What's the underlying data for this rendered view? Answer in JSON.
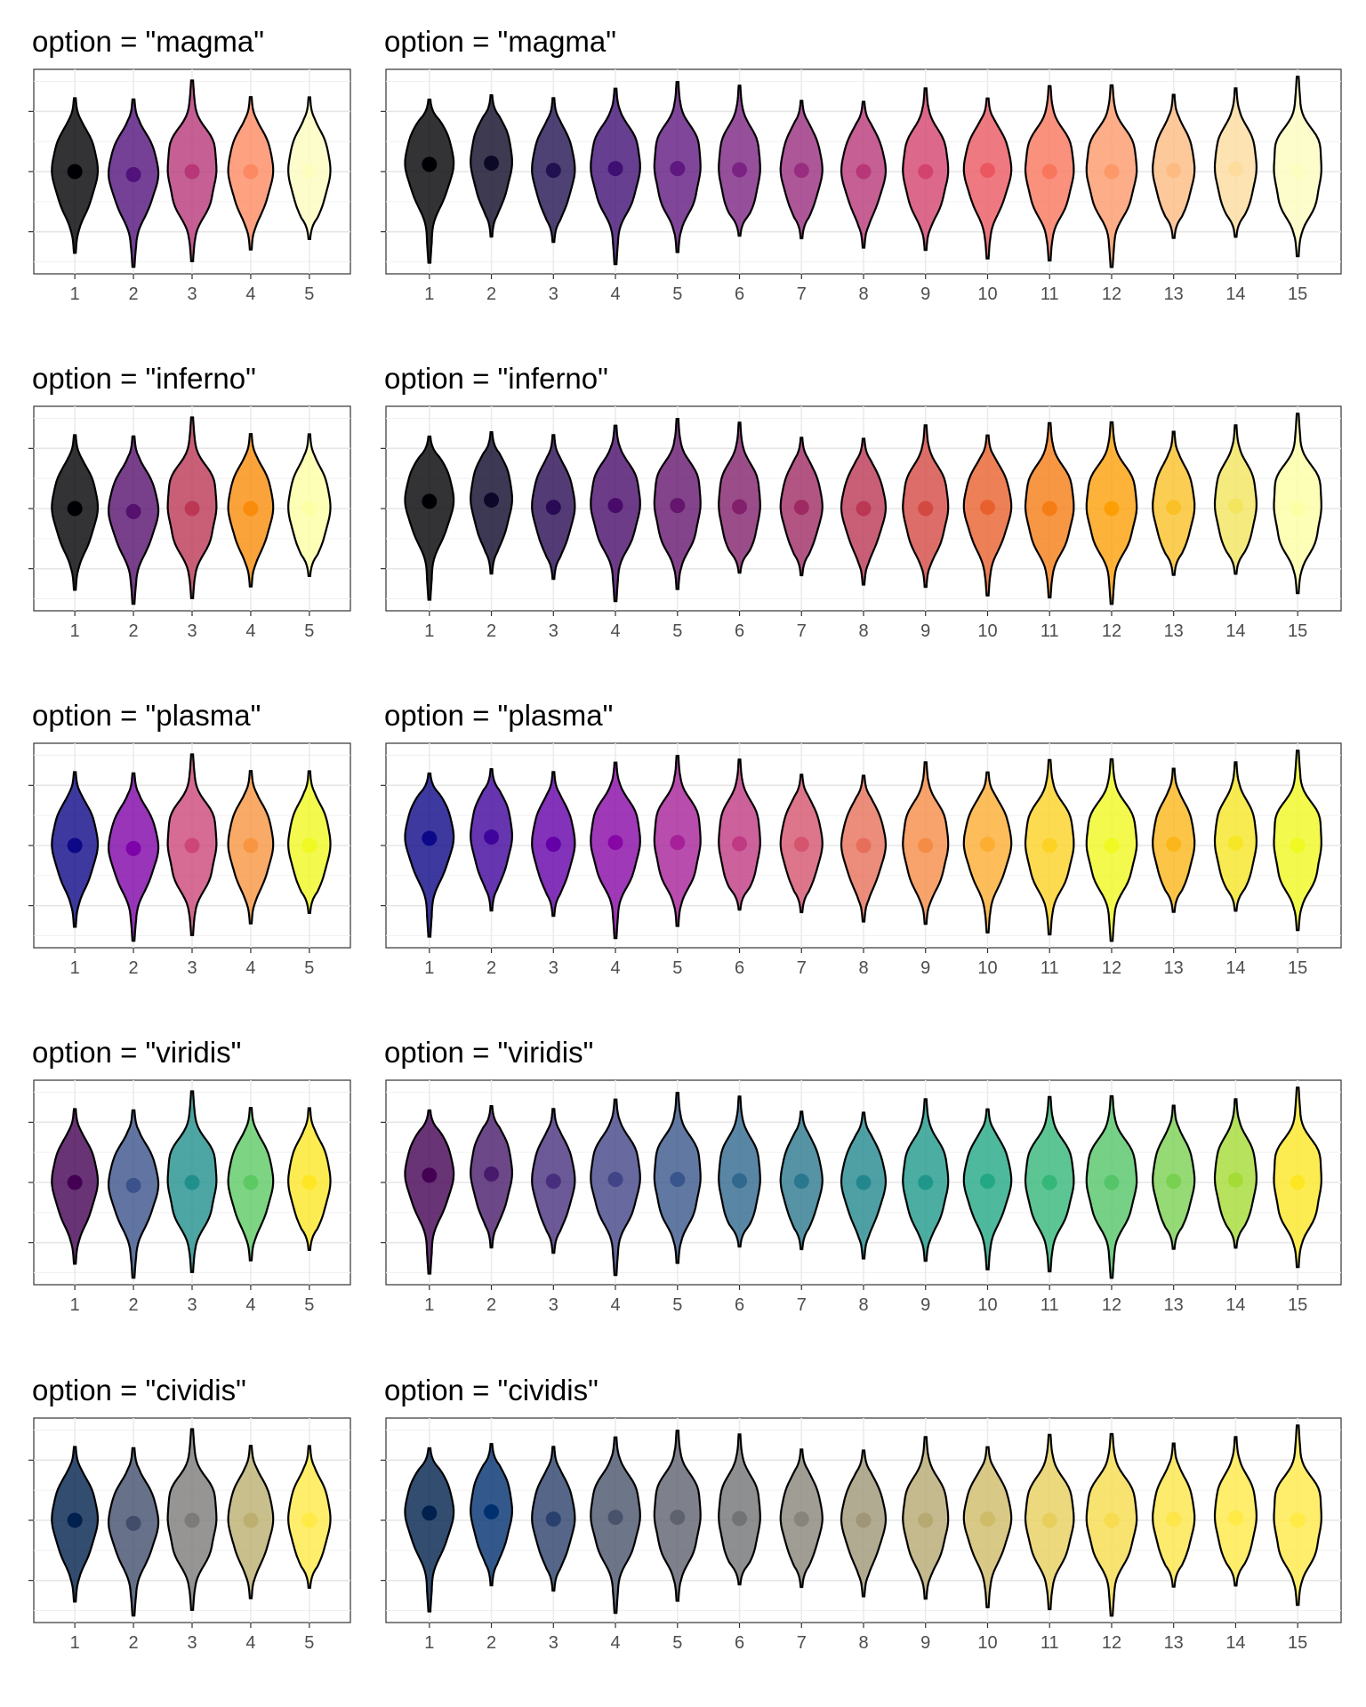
{
  "chart_data": {
    "type": "violin",
    "panels": [
      {
        "title": "option = \"magma\"",
        "option": "magma",
        "categories": [
          "1",
          "2",
          "3",
          "4",
          "5"
        ],
        "medians": [
          0.0,
          -0.05,
          0.0,
          0.0,
          0.0
        ],
        "fills": [
          "#000004",
          "#51127c",
          "#b73779",
          "#fc8961",
          "#fcfdbf"
        ]
      },
      {
        "title": "option = \"magma\"",
        "option": "magma",
        "categories": [
          "1",
          "2",
          "3",
          "4",
          "5",
          "6",
          "7",
          "8",
          "9",
          "10",
          "11",
          "12",
          "13",
          "14",
          "15"
        ],
        "medians": [
          0.12,
          0.14,
          0.02,
          0.05,
          0.05,
          0.03,
          0.02,
          0.0,
          0.0,
          0.02,
          0.0,
          0.0,
          0.02,
          0.04,
          0.0
        ],
        "fills": [
          "#000004",
          "#0c0926",
          "#221150",
          "#400f74",
          "#5f187f",
          "#7b2382",
          "#982d80",
          "#b73779",
          "#d3436e",
          "#eb5760",
          "#f8765c",
          "#fd9969",
          "#febb81",
          "#fddc9e",
          "#fcfdbf"
        ]
      },
      {
        "title": "option = \"inferno\"",
        "option": "inferno",
        "categories": [
          "1",
          "2",
          "3",
          "4",
          "5"
        ],
        "medians": [
          0.0,
          -0.05,
          0.0,
          0.0,
          0.0
        ],
        "fills": [
          "#000004",
          "#56106e",
          "#bb3754",
          "#f98c0a",
          "#fcffa4"
        ]
      },
      {
        "title": "option = \"inferno\"",
        "option": "inferno",
        "categories": [
          "1",
          "2",
          "3",
          "4",
          "5",
          "6",
          "7",
          "8",
          "9",
          "10",
          "11",
          "12",
          "13",
          "14",
          "15"
        ],
        "medians": [
          0.12,
          0.14,
          0.02,
          0.05,
          0.05,
          0.03,
          0.02,
          0.0,
          0.0,
          0.02,
          0.0,
          0.0,
          0.02,
          0.04,
          0.0
        ],
        "fills": [
          "#000004",
          "#0d0829",
          "#280b54",
          "#480b6a",
          "#65156e",
          "#82206c",
          "#9f2a63",
          "#bb3754",
          "#d44842",
          "#e8602d",
          "#f57d15",
          "#fc9f07",
          "#fac127",
          "#f3e55d",
          "#fcffa4"
        ]
      },
      {
        "title": "option = \"plasma\"",
        "option": "plasma",
        "categories": [
          "1",
          "2",
          "3",
          "4",
          "5"
        ],
        "medians": [
          0.0,
          -0.05,
          0.0,
          0.0,
          0.0
        ],
        "fills": [
          "#0d0887",
          "#7e03a8",
          "#cc4778",
          "#f89540",
          "#f0f921"
        ]
      },
      {
        "title": "option = \"plasma\"",
        "option": "plasma",
        "categories": [
          "1",
          "2",
          "3",
          "4",
          "5",
          "6",
          "7",
          "8",
          "9",
          "10",
          "11",
          "12",
          "13",
          "14",
          "15"
        ],
        "medians": [
          0.12,
          0.14,
          0.02,
          0.05,
          0.05,
          0.03,
          0.02,
          0.0,
          0.0,
          0.02,
          0.0,
          0.0,
          0.02,
          0.04,
          0.0
        ],
        "fills": [
          "#0d0887",
          "#3e049c",
          "#6300a7",
          "#8707a6",
          "#a62098",
          "#c03a83",
          "#d5546e",
          "#e76f5a",
          "#f58c46",
          "#fdad32",
          "#fcd225",
          "#f0f921",
          "#fbb61a",
          "#f5e626",
          "#f0f921"
        ]
      },
      {
        "title": "option = \"viridis\"",
        "option": "viridis",
        "categories": [
          "1",
          "2",
          "3",
          "4",
          "5"
        ],
        "medians": [
          0.0,
          -0.05,
          0.0,
          0.0,
          0.0
        ],
        "fills": [
          "#440154",
          "#3b528b",
          "#21908c",
          "#5dc963",
          "#fde725"
        ]
      },
      {
        "title": "option = \"viridis\"",
        "option": "viridis",
        "categories": [
          "1",
          "2",
          "3",
          "4",
          "5",
          "6",
          "7",
          "8",
          "9",
          "10",
          "11",
          "12",
          "13",
          "14",
          "15"
        ],
        "medians": [
          0.12,
          0.14,
          0.02,
          0.05,
          0.05,
          0.03,
          0.02,
          0.0,
          0.0,
          0.02,
          0.0,
          0.0,
          0.02,
          0.04,
          0.0
        ],
        "fills": [
          "#440154",
          "#481a6c",
          "#472f7d",
          "#414487",
          "#39568c",
          "#31688e",
          "#2a788e",
          "#23888e",
          "#1f988b",
          "#22a884",
          "#35b779",
          "#54c568",
          "#7ad151",
          "#a5db36",
          "#fde725"
        ]
      },
      {
        "title": "option = \"cividis\"",
        "option": "cividis",
        "categories": [
          "1",
          "2",
          "3",
          "4",
          "5"
        ],
        "medians": [
          0.0,
          -0.05,
          0.0,
          0.0,
          0.0
        ],
        "fills": [
          "#00204d",
          "#414d6b",
          "#7c7b78",
          "#bcaf6f",
          "#ffea46"
        ]
      },
      {
        "title": "option = \"cividis\"",
        "option": "cividis",
        "categories": [
          "1",
          "2",
          "3",
          "4",
          "5",
          "6",
          "7",
          "8",
          "9",
          "10",
          "11",
          "12",
          "13",
          "14",
          "15"
        ],
        "medians": [
          0.12,
          0.14,
          0.02,
          0.05,
          0.05,
          0.03,
          0.02,
          0.0,
          0.0,
          0.02,
          0.0,
          0.0,
          0.02,
          0.04,
          0.0
        ],
        "fills": [
          "#00204d",
          "#00306f",
          "#2a406c",
          "#48526b",
          "#5e626e",
          "#727374",
          "#878479",
          "#9e9677",
          "#b6a971",
          "#cfbc68",
          "#e7cf5c",
          "#f6dc4e",
          "#fde64a",
          "#ffea46",
          "#ffea46"
        ]
      }
    ],
    "y_axis_ticks_shown": false,
    "grid": true,
    "theme": "bw"
  }
}
